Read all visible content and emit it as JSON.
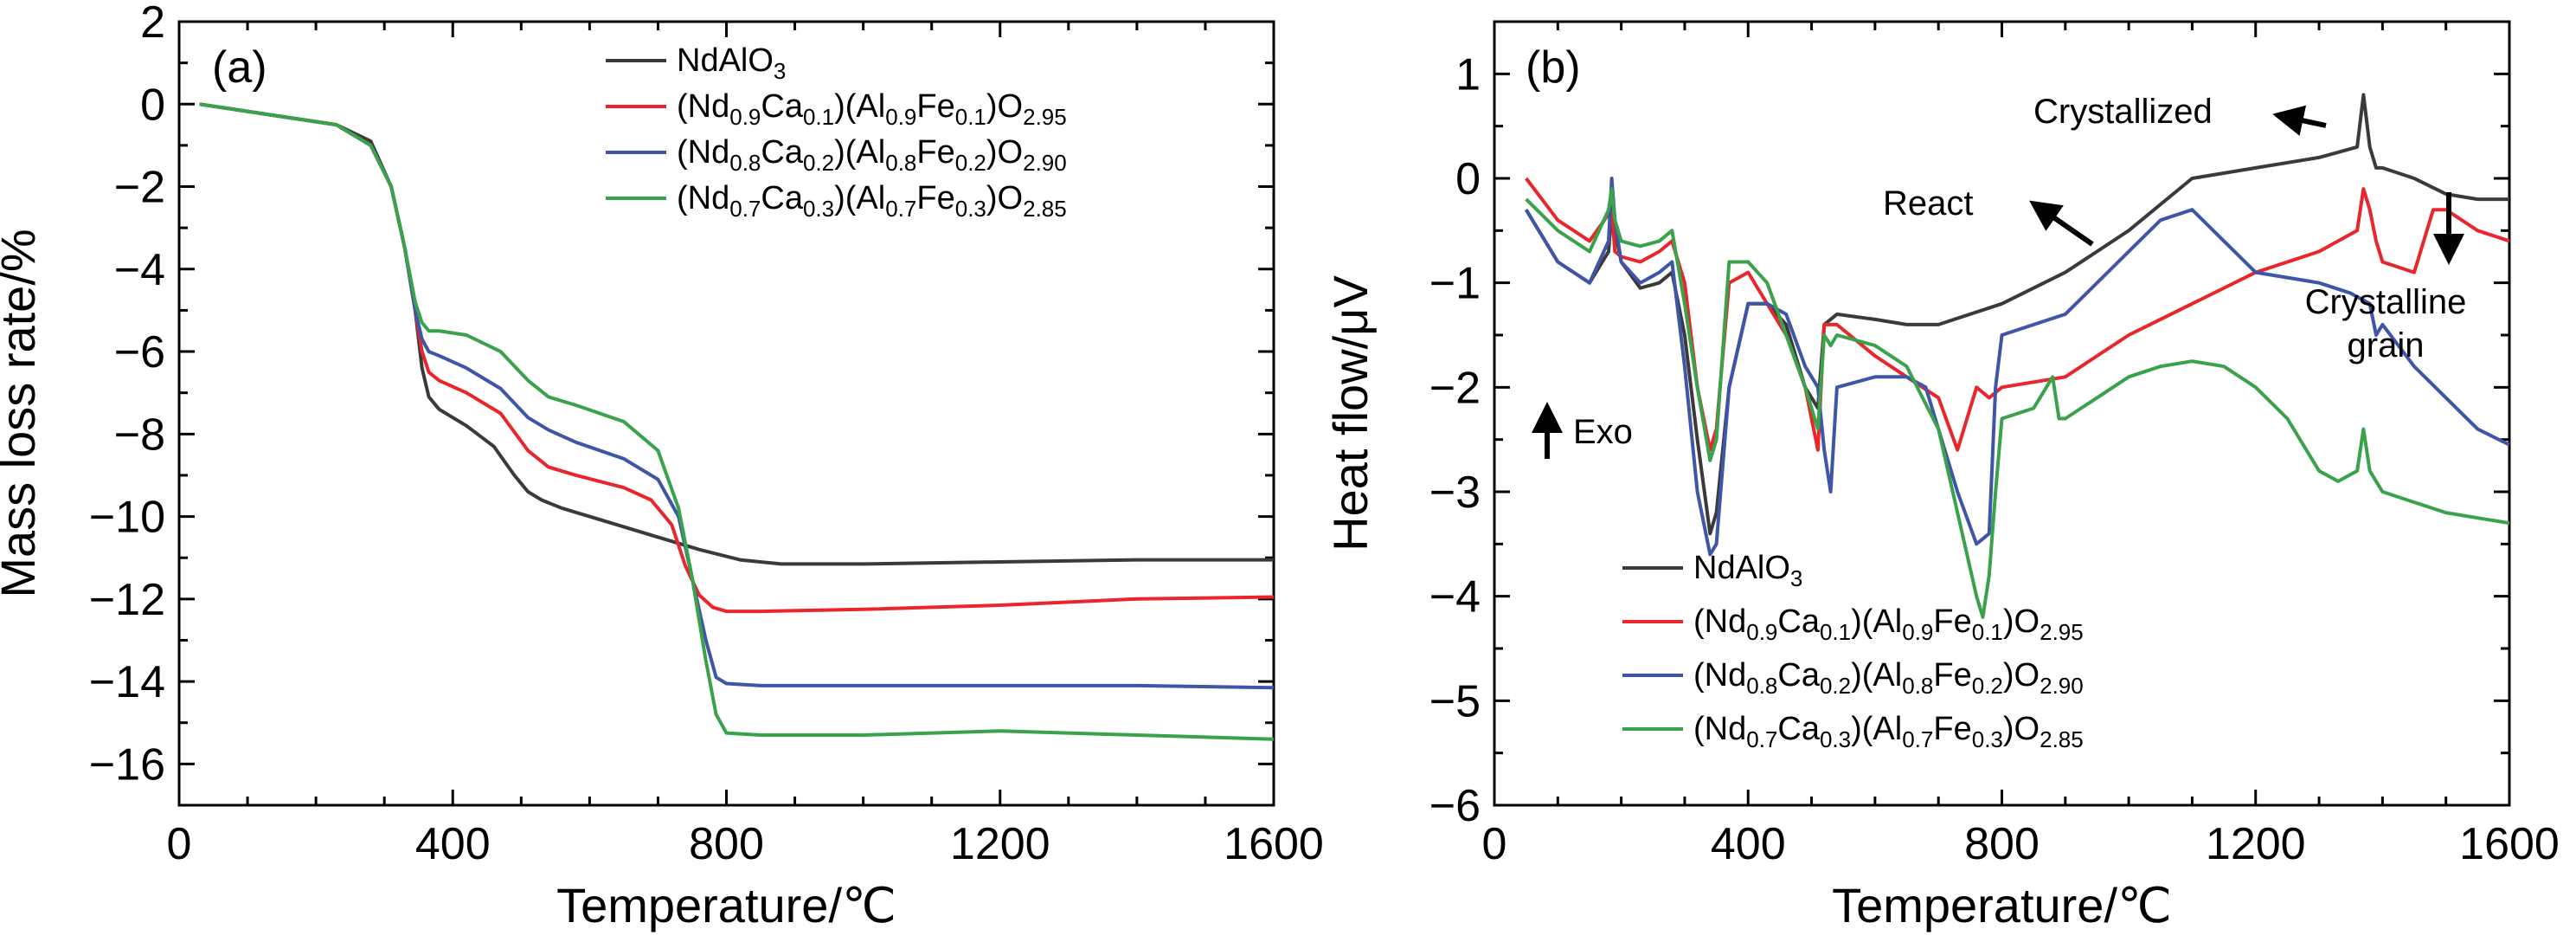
{
  "colors": {
    "black": "#3a3a3a",
    "red": "#e8262c",
    "blue": "#3f55a8",
    "green": "#3aa24a"
  },
  "legend_entries": [
    {
      "key": "ndalo3",
      "plain": "NdAlO3",
      "parts": [
        [
          "NdAlO",
          ""
        ],
        [
          "3",
          "sub"
        ]
      ]
    },
    {
      "key": "x01",
      "plain": "(Nd0.9Ca0.1)(Al0.9Fe0.1)O2.95",
      "parts": [
        [
          "(Nd",
          ""
        ],
        [
          "0.9",
          "sub"
        ],
        [
          "Ca",
          ""
        ],
        [
          "0.1",
          "sub"
        ],
        [
          ")(Al",
          ""
        ],
        [
          "0.9",
          "sub"
        ],
        [
          "Fe",
          ""
        ],
        [
          "0.1",
          "sub"
        ],
        [
          ")O",
          ""
        ],
        [
          "2.95",
          "sub"
        ]
      ]
    },
    {
      "key": "x02",
      "plain": "(Nd0.8Ca0.2)(Al0.8Fe0.2)O2.90",
      "parts": [
        [
          "(Nd",
          ""
        ],
        [
          "0.8",
          "sub"
        ],
        [
          "Ca",
          ""
        ],
        [
          "0.2",
          "sub"
        ],
        [
          ")(Al",
          ""
        ],
        [
          "0.8",
          "sub"
        ],
        [
          "Fe",
          ""
        ],
        [
          "0.2",
          "sub"
        ],
        [
          ")O",
          ""
        ],
        [
          "2.90",
          "sub"
        ]
      ]
    },
    {
      "key": "x03",
      "plain": "(Nd0.7Ca0.3)(Al0.7Fe0.3)O2.85",
      "parts": [
        [
          "(Nd",
          ""
        ],
        [
          "0.7",
          "sub"
        ],
        [
          "Ca",
          ""
        ],
        [
          "0.3",
          "sub"
        ],
        [
          ")(Al",
          ""
        ],
        [
          "0.7",
          "sub"
        ],
        [
          "Fe",
          ""
        ],
        [
          "0.3",
          "sub"
        ],
        [
          ")O",
          ""
        ],
        [
          "2.85",
          "sub"
        ]
      ]
    }
  ],
  "chart_data": [
    {
      "type": "line",
      "panel_label": "(a)",
      "xlabel": "Temperature/℃",
      "ylabel": "Mass loss rate/%",
      "xlim": [
        0,
        1600
      ],
      "ylim": [
        -17,
        2
      ],
      "xticks": [
        0,
        400,
        800,
        1200,
        1600
      ],
      "xtick_labels": [
        "0",
        "400",
        "800",
        "1200",
        "1600"
      ],
      "yticks": [
        2,
        0,
        -2,
        -4,
        -6,
        -8,
        -10,
        -12,
        -14,
        -16
      ],
      "ytick_labels": [
        "2",
        "0",
        "−2",
        "−4",
        "−6",
        "−8",
        "−10",
        "−12",
        "−14",
        "−16"
      ],
      "legend_position": "top-right",
      "series": [
        {
          "name": "NdAlO3",
          "color": "#3a3a3a",
          "x": [
            30,
            150,
            230,
            280,
            310,
            330,
            345,
            355,
            365,
            380,
            420,
            460,
            490,
            510,
            530,
            560,
            620,
            700,
            760,
            820,
            880,
            1000,
            1200,
            1400,
            1600
          ],
          "y": [
            0,
            -0.3,
            -0.5,
            -0.9,
            -2.0,
            -3.5,
            -5.0,
            -6.4,
            -7.1,
            -7.4,
            -7.8,
            -8.3,
            -9.0,
            -9.4,
            -9.6,
            -9.8,
            -10.1,
            -10.5,
            -10.8,
            -11.05,
            -11.15,
            -11.15,
            -11.1,
            -11.05,
            -11.05
          ]
        },
        {
          "name": "(Nd0.9Ca0.1)(Al0.9Fe0.1)O2.95",
          "color": "#e8262c",
          "x": [
            30,
            150,
            230,
            280,
            310,
            330,
            345,
            355,
            365,
            380,
            420,
            470,
            510,
            540,
            580,
            650,
            690,
            720,
            740,
            760,
            780,
            800,
            850,
            1000,
            1200,
            1400,
            1600
          ],
          "y": [
            0,
            -0.3,
            -0.5,
            -1.0,
            -2.0,
            -3.5,
            -5.0,
            -6.0,
            -6.5,
            -6.7,
            -7.0,
            -7.5,
            -8.4,
            -8.8,
            -9.0,
            -9.3,
            -9.6,
            -10.2,
            -11.2,
            -11.9,
            -12.2,
            -12.3,
            -12.3,
            -12.25,
            -12.15,
            -12.0,
            -11.95
          ]
        },
        {
          "name": "(Nd0.8Ca0.2)(Al0.8Fe0.2)O2.90",
          "color": "#3f55a8",
          "x": [
            30,
            150,
            230,
            280,
            310,
            330,
            345,
            355,
            365,
            380,
            420,
            470,
            510,
            540,
            580,
            650,
            700,
            730,
            750,
            770,
            785,
            800,
            850,
            1000,
            1200,
            1400,
            1600
          ],
          "y": [
            0,
            -0.3,
            -0.5,
            -1.0,
            -2.0,
            -3.5,
            -5.0,
            -5.7,
            -6.0,
            -6.1,
            -6.4,
            -6.9,
            -7.6,
            -7.9,
            -8.2,
            -8.6,
            -9.1,
            -10.0,
            -11.5,
            -13.0,
            -13.9,
            -14.05,
            -14.1,
            -14.1,
            -14.1,
            -14.1,
            -14.15
          ]
        },
        {
          "name": "(Nd0.7Ca0.3)(Al0.7Fe0.3)O2.85",
          "color": "#3aa24a",
          "x": [
            30,
            150,
            230,
            280,
            310,
            330,
            345,
            355,
            365,
            380,
            420,
            470,
            510,
            540,
            580,
            650,
            700,
            730,
            750,
            770,
            785,
            800,
            850,
            1000,
            1200,
            1400,
            1600
          ],
          "y": [
            0,
            -0.3,
            -0.5,
            -1.0,
            -2.0,
            -3.5,
            -4.8,
            -5.3,
            -5.5,
            -5.5,
            -5.6,
            -6.0,
            -6.7,
            -7.1,
            -7.3,
            -7.7,
            -8.4,
            -9.8,
            -11.5,
            -13.5,
            -14.8,
            -15.25,
            -15.3,
            -15.3,
            -15.2,
            -15.3,
            -15.4
          ]
        }
      ]
    },
    {
      "type": "line",
      "panel_label": "(b)",
      "xlabel": "Temperature/℃",
      "ylabel": "Heat flow/μV",
      "xlim": [
        0,
        1600
      ],
      "ylim": [
        -6,
        1.5
      ],
      "xticks": [
        0,
        400,
        800,
        1200,
        1600
      ],
      "xtick_labels": [
        "0",
        "400",
        "800",
        "1200",
        "1600"
      ],
      "yticks": [
        1,
        0,
        -1,
        -2,
        -3,
        -4,
        -5,
        -6
      ],
      "ytick_labels": [
        "1",
        "0",
        "−1",
        "−2",
        "−3",
        "−4",
        "−5",
        "−6"
      ],
      "legend_position": "bottom-left",
      "annotations": [
        "Crystallized",
        "React",
        "Crystalline",
        "grain",
        "Exo"
      ],
      "series": [
        {
          "name": "NdAlO3",
          "color": "#3a3a3a",
          "x": [
            50,
            100,
            150,
            180,
            185,
            190,
            200,
            230,
            260,
            280,
            300,
            320,
            340,
            350,
            370,
            400,
            430,
            460,
            490,
            510,
            520,
            540,
            600,
            650,
            700,
            800,
            900,
            1000,
            1100,
            1200,
            1300,
            1360,
            1370,
            1380,
            1390,
            1400,
            1450,
            1500,
            1550,
            1600
          ],
          "y": [
            -0.3,
            -0.8,
            -1.0,
            -0.7,
            -0.3,
            -0.5,
            -0.8,
            -1.05,
            -1.0,
            -0.9,
            -1.5,
            -2.5,
            -3.4,
            -3.2,
            -2.0,
            -1.2,
            -1.2,
            -1.4,
            -2.0,
            -2.2,
            -1.4,
            -1.3,
            -1.35,
            -1.4,
            -1.4,
            -1.2,
            -0.9,
            -0.5,
            0.0,
            0.1,
            0.2,
            0.3,
            0.8,
            0.3,
            0.1,
            0.1,
            0.0,
            -0.15,
            -0.2,
            -0.2
          ]
        },
        {
          "name": "(Nd0.9Ca0.1)(Al0.9Fe0.1)O2.95",
          "color": "#e8262c",
          "x": [
            50,
            100,
            150,
            185,
            190,
            200,
            230,
            260,
            280,
            300,
            320,
            340,
            350,
            370,
            400,
            430,
            460,
            490,
            510,
            520,
            540,
            600,
            650,
            700,
            730,
            760,
            780,
            800,
            900,
            1000,
            1100,
            1200,
            1300,
            1360,
            1370,
            1380,
            1390,
            1400,
            1450,
            1480,
            1500,
            1550,
            1600
          ],
          "y": [
            0.0,
            -0.4,
            -0.6,
            -0.3,
            -0.7,
            -0.75,
            -0.8,
            -0.7,
            -0.6,
            -1.0,
            -2.0,
            -2.6,
            -2.4,
            -1.0,
            -0.9,
            -1.2,
            -1.5,
            -2.0,
            -2.6,
            -1.4,
            -1.4,
            -1.7,
            -1.9,
            -2.1,
            -2.6,
            -2.0,
            -2.1,
            -2.0,
            -1.9,
            -1.5,
            -1.2,
            -0.9,
            -0.7,
            -0.5,
            -0.1,
            -0.3,
            -0.6,
            -0.8,
            -0.9,
            -0.3,
            -0.3,
            -0.5,
            -0.6
          ]
        },
        {
          "name": "(Nd0.8Ca0.2)(Al0.8Fe0.2)O2.90",
          "color": "#3f55a8",
          "x": [
            50,
            100,
            150,
            180,
            185,
            190,
            200,
            230,
            260,
            280,
            300,
            320,
            340,
            350,
            370,
            400,
            430,
            460,
            490,
            510,
            520,
            530,
            540,
            600,
            650,
            680,
            700,
            730,
            760,
            780,
            790,
            800,
            900,
            1000,
            1050,
            1100,
            1150,
            1200,
            1300,
            1350,
            1380,
            1390,
            1400,
            1450,
            1500,
            1550,
            1600
          ],
          "y": [
            -0.3,
            -0.8,
            -1.0,
            -0.6,
            0.0,
            -0.4,
            -0.8,
            -1.0,
            -0.9,
            -0.8,
            -1.8,
            -3.0,
            -3.6,
            -3.5,
            -2.0,
            -1.2,
            -1.2,
            -1.3,
            -1.8,
            -2.0,
            -2.6,
            -3.0,
            -2.0,
            -1.9,
            -1.9,
            -2.0,
            -2.4,
            -3.0,
            -3.5,
            -3.4,
            -2.0,
            -1.5,
            -1.3,
            -0.7,
            -0.4,
            -0.3,
            -0.6,
            -0.9,
            -1.0,
            -1.1,
            -1.2,
            -1.5,
            -1.4,
            -1.8,
            -2.1,
            -2.4,
            -2.55
          ]
        },
        {
          "name": "(Nd0.7Ca0.3)(Al0.7Fe0.3)O2.85",
          "color": "#3aa24a",
          "x": [
            50,
            100,
            150,
            180,
            185,
            190,
            200,
            230,
            260,
            280,
            300,
            320,
            340,
            350,
            370,
            400,
            430,
            460,
            490,
            510,
            520,
            530,
            540,
            600,
            650,
            700,
            730,
            760,
            770,
            780,
            790,
            800,
            850,
            880,
            890,
            900,
            950,
            1000,
            1050,
            1100,
            1150,
            1200,
            1250,
            1300,
            1330,
            1360,
            1370,
            1380,
            1390,
            1400,
            1450,
            1500,
            1550,
            1600
          ],
          "y": [
            -0.2,
            -0.5,
            -0.7,
            -0.3,
            -0.1,
            -0.4,
            -0.6,
            -0.65,
            -0.6,
            -0.5,
            -1.2,
            -2.0,
            -2.7,
            -2.5,
            -0.8,
            -0.8,
            -1.0,
            -1.5,
            -2.0,
            -2.4,
            -1.5,
            -1.6,
            -1.5,
            -1.6,
            -1.8,
            -2.4,
            -3.2,
            -4.0,
            -4.2,
            -3.8,
            -3.0,
            -2.3,
            -2.2,
            -1.9,
            -2.3,
            -2.3,
            -2.1,
            -1.9,
            -1.8,
            -1.75,
            -1.8,
            -2.0,
            -2.3,
            -2.8,
            -2.9,
            -2.8,
            -2.4,
            -2.8,
            -2.9,
            -3.0,
            -3.1,
            -3.2,
            -3.25,
            -3.3
          ]
        }
      ]
    }
  ]
}
